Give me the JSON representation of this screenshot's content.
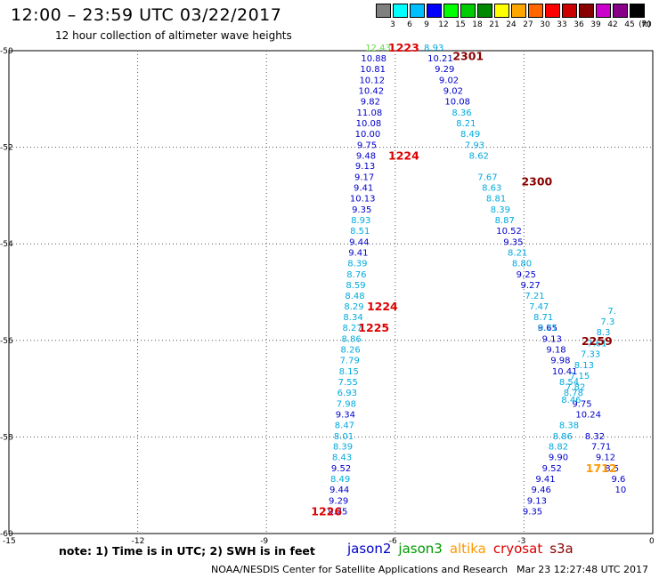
{
  "title": "12:00 – 23:59 UTC 03/22/2017",
  "subtitle": "12 hour collection of altimeter wave heights",
  "colorbar": {
    "colors": [
      "#808080",
      "#00ffff",
      "#00bfff",
      "#0000ff",
      "#00ff00",
      "#00cc00",
      "#008800",
      "#ffff00",
      "#ffa500",
      "#ff6600",
      "#ff0000",
      "#cc0000",
      "#880000",
      "#cc00cc",
      "#880088",
      "#000000"
    ],
    "labels": [
      "3",
      "6",
      "9",
      "12",
      "15",
      "18",
      "21",
      "24",
      "27",
      "30",
      "33",
      "36",
      "39",
      "42",
      "45",
      "70",
      "(ft)"
    ]
  },
  "axes": {
    "lat_labels": [
      "-50",
      "-52",
      "-54",
      "-56",
      "-58",
      "-60"
    ],
    "lon_labels": [
      "-15",
      "-12",
      "-9",
      "-6",
      "-3",
      "0"
    ]
  },
  "tracks": [
    {
      "color": "#66dd44",
      "points": [
        {
          "lon": -6.4,
          "lat": -49.93,
          "text": "12.43"
        }
      ]
    },
    {
      "color": "#0000cc",
      "points": [
        {
          "lon": -6.5,
          "lat": -50.15,
          "text": "10.88"
        },
        {
          "lon": -6.52,
          "lat": -50.37,
          "text": "10.81"
        },
        {
          "lon": -6.54,
          "lat": -50.6,
          "text": "10.12"
        },
        {
          "lon": -6.56,
          "lat": -50.82,
          "text": "10.42"
        },
        {
          "lon": -6.58,
          "lat": -51.04,
          "text": "9.82"
        },
        {
          "lon": -6.6,
          "lat": -51.27,
          "text": "11.08"
        },
        {
          "lon": -6.62,
          "lat": -51.49,
          "text": "10.08"
        },
        {
          "lon": -6.64,
          "lat": -51.71,
          "text": "10.00"
        },
        {
          "lon": -6.66,
          "lat": -51.94,
          "text": "9.75"
        },
        {
          "lon": -6.68,
          "lat": -52.16,
          "text": "9.48"
        },
        {
          "lon": -6.7,
          "lat": -52.38,
          "text": "9.13"
        },
        {
          "lon": -6.72,
          "lat": -52.61,
          "text": "9.17"
        },
        {
          "lon": -6.74,
          "lat": -52.83,
          "text": "9.41"
        },
        {
          "lon": -6.76,
          "lat": -53.05,
          "text": "10.13"
        },
        {
          "lon": -6.78,
          "lat": -53.28,
          "text": "9.35"
        }
      ]
    },
    {
      "color": "#00aadd",
      "points": [
        {
          "lon": -6.8,
          "lat": -53.5,
          "text": "8.93"
        },
        {
          "lon": -6.82,
          "lat": -53.72,
          "text": "8.51"
        }
      ]
    },
    {
      "color": "#0000cc",
      "points": [
        {
          "lon": -6.84,
          "lat": -53.95,
          "text": "9.44"
        },
        {
          "lon": -6.86,
          "lat": -54.17,
          "text": "9.41"
        }
      ]
    },
    {
      "color": "#00aadd",
      "points": [
        {
          "lon": -6.88,
          "lat": -54.39,
          "text": "8.39"
        },
        {
          "lon": -6.9,
          "lat": -54.62,
          "text": "8.76"
        },
        {
          "lon": -6.92,
          "lat": -54.84,
          "text": "8.59"
        },
        {
          "lon": -6.94,
          "lat": -55.06,
          "text": "8.48"
        },
        {
          "lon": -6.96,
          "lat": -55.29,
          "text": "8.29"
        },
        {
          "lon": -6.98,
          "lat": -55.51,
          "text": "8.34"
        },
        {
          "lon": -7.0,
          "lat": -55.73,
          "text": "8.27"
        },
        {
          "lon": -7.02,
          "lat": -55.96,
          "text": "8.86"
        },
        {
          "lon": -7.04,
          "lat": -56.18,
          "text": "8.26"
        },
        {
          "lon": -7.06,
          "lat": -56.4,
          "text": "7.79"
        },
        {
          "lon": -7.08,
          "lat": -56.63,
          "text": "8.15"
        },
        {
          "lon": -7.1,
          "lat": -56.85,
          "text": "7.55"
        },
        {
          "lon": -7.12,
          "lat": -57.07,
          "text": "6.93"
        },
        {
          "lon": -7.14,
          "lat": -57.3,
          "text": "7.98"
        }
      ]
    },
    {
      "color": "#0000cc",
      "points": [
        {
          "lon": -7.16,
          "lat": -57.52,
          "text": "9.34"
        }
      ]
    },
    {
      "color": "#00aadd",
      "points": [
        {
          "lon": -7.18,
          "lat": -57.74,
          "text": "8.47"
        },
        {
          "lon": -7.2,
          "lat": -57.97,
          "text": "8.01"
        },
        {
          "lon": -7.22,
          "lat": -58.19,
          "text": "8.39"
        },
        {
          "lon": -7.24,
          "lat": -58.41,
          "text": "8.43"
        }
      ]
    },
    {
      "color": "#0000cc",
      "points": [
        {
          "lon": -7.26,
          "lat": -58.64,
          "text": "9.52"
        }
      ]
    },
    {
      "color": "#00aadd",
      "points": [
        {
          "lon": -7.28,
          "lat": -58.86,
          "text": "8.49"
        }
      ]
    },
    {
      "color": "#0000cc",
      "points": [
        {
          "lon": -7.3,
          "lat": -59.08,
          "text": "9.44"
        },
        {
          "lon": -7.32,
          "lat": -59.31,
          "text": "9.29"
        },
        {
          "lon": -7.34,
          "lat": -59.53,
          "text": "9.25"
        }
      ]
    },
    {
      "color": "#00aadd",
      "points": [
        {
          "lon": -5.1,
          "lat": -49.93,
          "text": "8.93"
        }
      ]
    },
    {
      "color": "#0000cc",
      "points": [
        {
          "lon": -4.95,
          "lat": -50.15,
          "text": "10.21"
        },
        {
          "lon": -4.85,
          "lat": -50.37,
          "text": "9.29"
        },
        {
          "lon": -4.75,
          "lat": -50.6,
          "text": "9.02"
        },
        {
          "lon": -4.65,
          "lat": -50.82,
          "text": "9.02"
        },
        {
          "lon": -4.55,
          "lat": -51.04,
          "text": "10.08"
        }
      ]
    },
    {
      "color": "#00aadd",
      "points": [
        {
          "lon": -4.45,
          "lat": -51.27,
          "text": "8.36"
        },
        {
          "lon": -4.35,
          "lat": -51.49,
          "text": "8.21"
        },
        {
          "lon": -4.25,
          "lat": -51.71,
          "text": "8.49"
        },
        {
          "lon": -4.15,
          "lat": -51.94,
          "text": "7.93"
        },
        {
          "lon": -4.05,
          "lat": -52.16,
          "text": "8.62"
        },
        {
          "lon": -3.85,
          "lat": -52.61,
          "text": "7.67"
        },
        {
          "lon": -3.75,
          "lat": -52.83,
          "text": "8.63"
        },
        {
          "lon": -3.65,
          "lat": -53.05,
          "text": "8.81"
        },
        {
          "lon": -3.55,
          "lat": -53.28,
          "text": "8.39"
        },
        {
          "lon": -3.45,
          "lat": -53.5,
          "text": "8.87"
        }
      ]
    },
    {
      "color": "#0000cc",
      "points": [
        {
          "lon": -3.35,
          "lat": -53.72,
          "text": "10.52"
        },
        {
          "lon": -3.25,
          "lat": -53.95,
          "text": "9.35"
        }
      ]
    },
    {
      "color": "#00aadd",
      "points": [
        {
          "lon": -3.15,
          "lat": -54.17,
          "text": "8.21"
        },
        {
          "lon": -3.05,
          "lat": -54.39,
          "text": "8.80"
        }
      ]
    },
    {
      "color": "#0000cc",
      "points": [
        {
          "lon": -2.95,
          "lat": -54.62,
          "text": "9.25"
        },
        {
          "lon": -2.85,
          "lat": -54.84,
          "text": "9.27"
        }
      ]
    },
    {
      "color": "#00aadd",
      "points": [
        {
          "lon": -2.75,
          "lat": -55.06,
          "text": "7.21"
        },
        {
          "lon": -2.65,
          "lat": -55.29,
          "text": "7.47"
        },
        {
          "lon": -2.55,
          "lat": -55.51,
          "text": "8.71"
        }
      ]
    },
    {
      "color": "#0000cc",
      "points": [
        {
          "lon": -2.45,
          "lat": -55.73,
          "text": "9.65"
        }
      ]
    },
    {
      "color": "#00aadd",
      "points": [
        {
          "lon": -2.45,
          "lat": -55.73,
          "text": "8.71"
        }
      ]
    },
    {
      "color": "#0000cc",
      "points": [
        {
          "lon": -2.35,
          "lat": -55.96,
          "text": "9.13"
        },
        {
          "lon": -2.25,
          "lat": -56.18,
          "text": "9.18"
        },
        {
          "lon": -2.15,
          "lat": -56.4,
          "text": "9.98"
        },
        {
          "lon": -2.05,
          "lat": -56.63,
          "text": "10.41"
        }
      ]
    },
    {
      "color": "#00aadd",
      "points": [
        {
          "lon": -1.95,
          "lat": -56.85,
          "text": "8.54"
        },
        {
          "lon": -1.85,
          "lat": -57.07,
          "text": "8.78"
        },
        {
          "lon": -1.8,
          "lat": -56.95,
          "text": "7.82"
        },
        {
          "lon": -1.7,
          "lat": -56.72,
          "text": "7.15"
        },
        {
          "lon": -1.6,
          "lat": -56.5,
          "text": "8.13"
        },
        {
          "lon": -1.45,
          "lat": -56.27,
          "text": "7.33"
        },
        {
          "lon": -1.3,
          "lat": -56.05,
          "text": "7.61"
        },
        {
          "lon": -1.15,
          "lat": -55.82,
          "text": "8.3"
        },
        {
          "lon": -1.05,
          "lat": -55.6,
          "text": "7.3"
        },
        {
          "lon": -0.95,
          "lat": -55.38,
          "text": "7."
        }
      ]
    },
    {
      "color": "#0000cc",
      "points": [
        {
          "lon": -1.65,
          "lat": -57.3,
          "text": "9.75"
        },
        {
          "lon": -1.5,
          "lat": -57.52,
          "text": "10.24"
        },
        {
          "lon": -1.35,
          "lat": -57.97,
          "text": "8.32"
        },
        {
          "lon": -1.2,
          "lat": -58.19,
          "text": "7.71"
        }
      ]
    },
    {
      "color": "#00aadd",
      "points": [
        {
          "lon": -1.9,
          "lat": -57.22,
          "text": "8.46"
        },
        {
          "lon": -1.95,
          "lat": -57.74,
          "text": "8.38"
        },
        {
          "lon": -2.1,
          "lat": -57.97,
          "text": "8.86"
        },
        {
          "lon": -2.2,
          "lat": -58.19,
          "text": "8.82"
        }
      ]
    },
    {
      "color": "#0000cc",
      "points": [
        {
          "lon": -2.2,
          "lat": -58.41,
          "text": "9.90"
        },
        {
          "lon": -2.35,
          "lat": -58.64,
          "text": "9.52"
        },
        {
          "lon": -2.5,
          "lat": -58.86,
          "text": "9.41"
        },
        {
          "lon": -2.6,
          "lat": -59.08,
          "text": "9.46"
        },
        {
          "lon": -2.7,
          "lat": -59.31,
          "text": "9.13"
        },
        {
          "lon": -2.8,
          "lat": -59.53,
          "text": "9.35"
        },
        {
          "lon": -1.1,
          "lat": -58.41,
          "text": "9.12"
        },
        {
          "lon": -0.95,
          "lat": -58.64,
          "text": "8.5"
        },
        {
          "lon": -0.8,
          "lat": -58.86,
          "text": "9.6"
        },
        {
          "lon": -0.75,
          "lat": -59.08,
          "text": "10"
        }
      ]
    }
  ],
  "time_labels": [
    {
      "text": "1223",
      "lon": -5.8,
      "lat": -49.93,
      "color": "#dd0000"
    },
    {
      "text": "2301",
      "lon": -4.3,
      "lat": -50.1,
      "color": "#8b0000"
    },
    {
      "text": "1224",
      "lon": -5.8,
      "lat": -52.16,
      "color": "#dd0000"
    },
    {
      "text": "2300",
      "lon": -2.7,
      "lat": -52.7,
      "color": "#8b0000"
    },
    {
      "text": "1224",
      "lon": -6.3,
      "lat": -55.29,
      "color": "#dd0000"
    },
    {
      "text": "1225",
      "lon": -6.5,
      "lat": -55.73,
      "color": "#dd0000"
    },
    {
      "text": "2259",
      "lon": -1.3,
      "lat": -56.0,
      "color": "#8b0000"
    },
    {
      "text": "1712",
      "lon": -1.2,
      "lat": -58.64,
      "color": "#ff9900"
    },
    {
      "text": "1226",
      "lon": -7.6,
      "lat": -59.53,
      "color": "#dd0000"
    }
  ],
  "note": "note: 1) Time is in UTC; 2) SWH is in feet",
  "legend": [
    {
      "name": "jason2",
      "color": "#0000cc"
    },
    {
      "name": "jason3",
      "color": "#009900"
    },
    {
      "name": "altika",
      "color": "#ff9900"
    },
    {
      "name": "cryosat",
      "color": "#dd0000"
    },
    {
      "name": "s3a",
      "color": "#8b0000"
    }
  ],
  "credit": "NOAA/NESDIS Center for Satellite Applications and Research",
  "timestamp": "Mar 23 12:27:48 UTC 2017"
}
